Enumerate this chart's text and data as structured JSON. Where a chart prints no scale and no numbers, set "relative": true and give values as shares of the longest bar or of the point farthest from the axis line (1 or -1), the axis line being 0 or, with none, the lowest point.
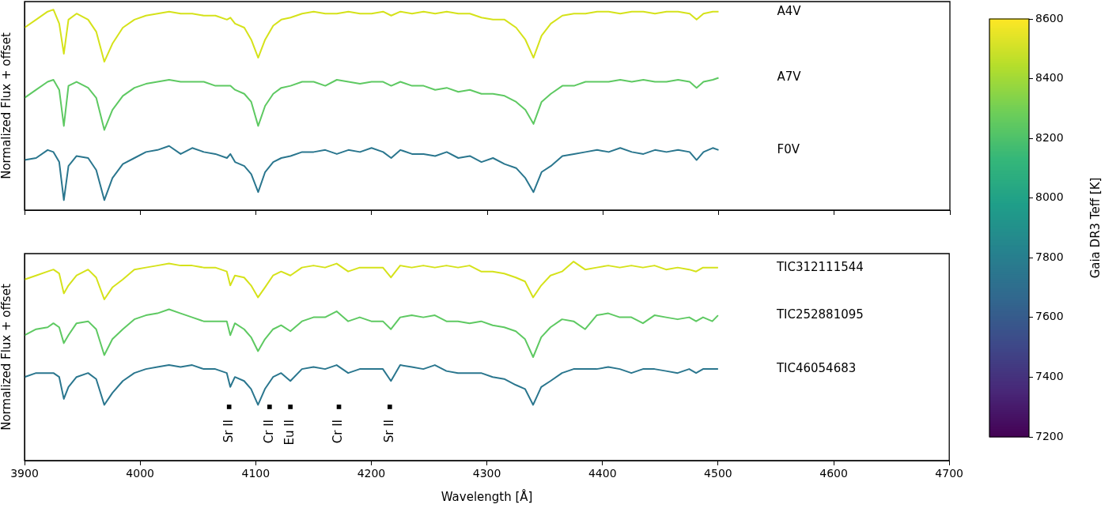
{
  "chart_data": [
    {
      "type": "line",
      "relative": true,
      "ylabel": "Normalized Flux + offset",
      "xlim": [
        3900,
        4700
      ],
      "xticks": [
        3900,
        4000,
        4100,
        4200,
        4300,
        4400,
        4500,
        4600,
        4700
      ],
      "tick_labels": false,
      "grid": false,
      "legend": false,
      "marker": "none",
      "line_style": "solid",
      "clabel": "Gaia DR3 Teff [K]",
      "clim": [
        7200,
        8600
      ],
      "cticks": [
        7200,
        7400,
        7600,
        7800,
        8000,
        8200,
        8400,
        8600
      ],
      "x": [
        3900,
        3910,
        3920,
        3925,
        3930,
        3934,
        3938,
        3945,
        3955,
        3962,
        3969,
        3976,
        3985,
        3995,
        4005,
        4015,
        4025,
        4035,
        4045,
        4055,
        4065,
        4075,
        4078,
        4082,
        4090,
        4096,
        4102,
        4108,
        4115,
        4122,
        4130,
        4140,
        4150,
        4160,
        4170,
        4180,
        4190,
        4200,
        4210,
        4217,
        4225,
        4235,
        4245,
        4255,
        4265,
        4275,
        4285,
        4295,
        4305,
        4315,
        4325,
        4333,
        4340,
        4347,
        4355,
        4365,
        4375,
        4385,
        4395,
        4405,
        4415,
        4425,
        4435,
        4445,
        4455,
        4465,
        4475,
        4481,
        4487,
        4495,
        4500
      ],
      "series": [
        {
          "name": "A4V",
          "color": "#d5e21a",
          "values": [
            0.91,
            0.95,
            0.99,
            1.0,
            0.93,
            0.78,
            0.95,
            0.98,
            0.95,
            0.89,
            0.74,
            0.83,
            0.91,
            0.95,
            0.97,
            0.98,
            0.99,
            0.98,
            0.98,
            0.97,
            0.97,
            0.95,
            0.96,
            0.93,
            0.91,
            0.85,
            0.76,
            0.85,
            0.92,
            0.95,
            0.96,
            0.98,
            0.99,
            0.98,
            0.98,
            0.99,
            0.98,
            0.98,
            0.99,
            0.97,
            0.99,
            0.98,
            0.99,
            0.98,
            0.99,
            0.98,
            0.98,
            0.96,
            0.95,
            0.95,
            0.91,
            0.85,
            0.76,
            0.87,
            0.93,
            0.97,
            0.98,
            0.98,
            0.99,
            0.99,
            0.98,
            0.99,
            0.99,
            0.98,
            0.99,
            0.99,
            0.98,
            0.95,
            0.98,
            0.99,
            0.99
          ]
        },
        {
          "name": "A7V",
          "color": "#5ec962",
          "values": [
            0.56,
            0.6,
            0.64,
            0.65,
            0.6,
            0.42,
            0.62,
            0.64,
            0.61,
            0.56,
            0.4,
            0.5,
            0.57,
            0.61,
            0.63,
            0.64,
            0.65,
            0.64,
            0.64,
            0.64,
            0.62,
            0.62,
            0.62,
            0.6,
            0.58,
            0.54,
            0.42,
            0.52,
            0.58,
            0.61,
            0.62,
            0.64,
            0.64,
            0.62,
            0.65,
            0.64,
            0.63,
            0.64,
            0.64,
            0.62,
            0.64,
            0.62,
            0.62,
            0.6,
            0.61,
            0.59,
            0.6,
            0.58,
            0.58,
            0.57,
            0.54,
            0.5,
            0.43,
            0.54,
            0.58,
            0.62,
            0.62,
            0.64,
            0.64,
            0.64,
            0.65,
            0.64,
            0.65,
            0.64,
            0.64,
            0.65,
            0.64,
            0.61,
            0.64,
            0.65,
            0.66
          ]
        },
        {
          "name": "F0V",
          "color": "#2a768e",
          "values": [
            0.25,
            0.26,
            0.3,
            0.29,
            0.24,
            0.05,
            0.22,
            0.27,
            0.26,
            0.2,
            0.05,
            0.16,
            0.23,
            0.26,
            0.29,
            0.3,
            0.32,
            0.28,
            0.31,
            0.29,
            0.28,
            0.26,
            0.28,
            0.24,
            0.22,
            0.18,
            0.09,
            0.19,
            0.24,
            0.26,
            0.27,
            0.29,
            0.29,
            0.3,
            0.28,
            0.3,
            0.29,
            0.31,
            0.29,
            0.26,
            0.3,
            0.28,
            0.28,
            0.27,
            0.29,
            0.26,
            0.27,
            0.24,
            0.26,
            0.23,
            0.21,
            0.16,
            0.09,
            0.19,
            0.22,
            0.27,
            0.28,
            0.29,
            0.3,
            0.29,
            0.31,
            0.29,
            0.28,
            0.3,
            0.29,
            0.3,
            0.29,
            0.25,
            0.29,
            0.31,
            0.3
          ]
        }
      ]
    },
    {
      "type": "line",
      "relative": true,
      "ylabel": "Normalized Flux + offset",
      "xlabel": "Wavelength [Å]",
      "xlim": [
        3900,
        4700
      ],
      "xticks": [
        3900,
        4000,
        4100,
        4200,
        4300,
        4400,
        4500,
        4600,
        4700
      ],
      "tick_labels": "x",
      "grid": false,
      "legend": false,
      "marker": "none",
      "line_style": "solid",
      "x": [
        3900,
        3910,
        3920,
        3925,
        3930,
        3934,
        3938,
        3945,
        3955,
        3962,
        3969,
        3976,
        3985,
        3995,
        4005,
        4015,
        4025,
        4035,
        4045,
        4055,
        4065,
        4075,
        4078,
        4082,
        4090,
        4096,
        4102,
        4108,
        4115,
        4122,
        4130,
        4140,
        4150,
        4160,
        4170,
        4180,
        4190,
        4200,
        4210,
        4217,
        4225,
        4235,
        4245,
        4255,
        4265,
        4275,
        4285,
        4295,
        4305,
        4315,
        4325,
        4333,
        4340,
        4347,
        4355,
        4365,
        4375,
        4385,
        4395,
        4405,
        4415,
        4425,
        4435,
        4445,
        4455,
        4465,
        4475,
        4481,
        4487,
        4495,
        4500
      ],
      "series": [
        {
          "name": "TIC312111544",
          "color": "#d5e21a",
          "values": [
            0.91,
            0.93,
            0.95,
            0.96,
            0.94,
            0.84,
            0.88,
            0.93,
            0.96,
            0.92,
            0.81,
            0.87,
            0.91,
            0.96,
            0.97,
            0.98,
            0.99,
            0.98,
            0.98,
            0.97,
            0.97,
            0.95,
            0.88,
            0.93,
            0.92,
            0.88,
            0.82,
            0.87,
            0.93,
            0.95,
            0.93,
            0.97,
            0.98,
            0.97,
            0.99,
            0.95,
            0.97,
            0.97,
            0.97,
            0.92,
            0.98,
            0.97,
            0.98,
            0.97,
            0.98,
            0.97,
            0.98,
            0.95,
            0.95,
            0.94,
            0.92,
            0.9,
            0.82,
            0.88,
            0.93,
            0.95,
            1.0,
            0.96,
            0.97,
            0.98,
            0.97,
            0.98,
            0.97,
            0.98,
            0.96,
            0.97,
            0.96,
            0.95,
            0.97,
            0.97,
            0.97
          ]
        },
        {
          "name": "TIC252881095",
          "color": "#5ec962",
          "values": [
            0.63,
            0.66,
            0.67,
            0.69,
            0.67,
            0.59,
            0.63,
            0.69,
            0.7,
            0.66,
            0.53,
            0.61,
            0.66,
            0.71,
            0.73,
            0.74,
            0.76,
            0.74,
            0.72,
            0.7,
            0.7,
            0.7,
            0.63,
            0.69,
            0.66,
            0.62,
            0.55,
            0.61,
            0.66,
            0.68,
            0.65,
            0.7,
            0.72,
            0.72,
            0.75,
            0.7,
            0.72,
            0.7,
            0.7,
            0.66,
            0.72,
            0.73,
            0.72,
            0.73,
            0.7,
            0.7,
            0.69,
            0.7,
            0.68,
            0.67,
            0.65,
            0.61,
            0.52,
            0.62,
            0.67,
            0.71,
            0.7,
            0.66,
            0.73,
            0.74,
            0.72,
            0.72,
            0.69,
            0.73,
            0.72,
            0.71,
            0.72,
            0.7,
            0.72,
            0.7,
            0.73
          ]
        },
        {
          "type": "scatter",
          "color": "#000000",
          "marker": "square",
          "x": [
            4077,
            4112,
            4130,
            4172,
            4216
          ],
          "values": [
            0.27,
            0.27,
            0.27,
            0.27,
            0.27
          ]
        },
        {
          "name": "TIC46054683",
          "color": "#2a768e",
          "values": [
            0.42,
            0.44,
            0.44,
            0.44,
            0.42,
            0.31,
            0.37,
            0.42,
            0.44,
            0.41,
            0.28,
            0.34,
            0.4,
            0.44,
            0.46,
            0.47,
            0.48,
            0.47,
            0.48,
            0.46,
            0.46,
            0.44,
            0.37,
            0.42,
            0.4,
            0.36,
            0.28,
            0.36,
            0.42,
            0.44,
            0.4,
            0.46,
            0.47,
            0.46,
            0.48,
            0.44,
            0.46,
            0.46,
            0.46,
            0.4,
            0.48,
            0.47,
            0.46,
            0.48,
            0.45,
            0.44,
            0.44,
            0.44,
            0.42,
            0.41,
            0.38,
            0.36,
            0.28,
            0.37,
            0.4,
            0.44,
            0.46,
            0.46,
            0.46,
            0.47,
            0.46,
            0.44,
            0.46,
            0.46,
            0.45,
            0.44,
            0.46,
            0.44,
            0.46,
            0.46,
            0.46
          ]
        }
      ],
      "annotations": [
        {
          "text": "Sr II",
          "x": 4077,
          "y": 0.27
        },
        {
          "text": "Cr II",
          "x": 4112,
          "y": 0.27
        },
        {
          "text": "Eu II",
          "x": 4130,
          "y": 0.27
        },
        {
          "text": "Cr II",
          "x": 4172,
          "y": 0.27
        },
        {
          "text": "Sr II",
          "x": 4216,
          "y": 0.27
        }
      ]
    }
  ]
}
